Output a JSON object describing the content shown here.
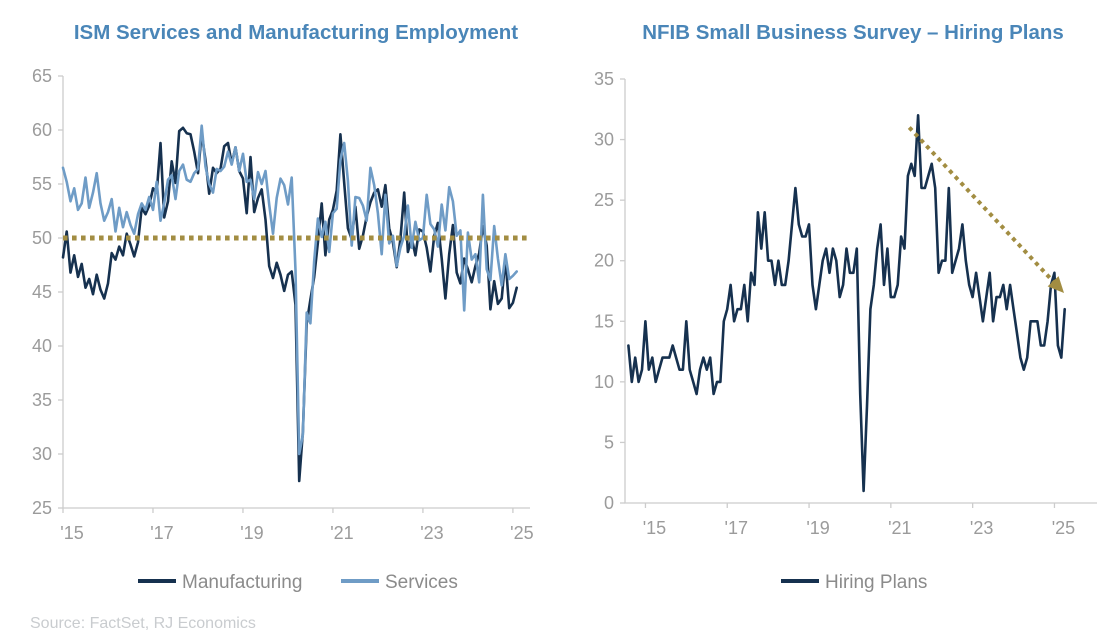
{
  "source": "Source: FactSet, RJ Economics",
  "styles": {
    "title_color": "#4a86b8",
    "tick_text_color": "#9b9b9b",
    "legend_text_color": "#8b8b8b",
    "source_text_color": "#c9cccf",
    "axis_color": "#cccccc",
    "navy": "#16314f",
    "steel_blue": "#6f9cc6",
    "khaki": "#a28d42"
  },
  "chart_data": [
    {
      "type": "line",
      "title": "ISM Services and Manufacturing Employment",
      "xlabel": "",
      "ylabel": "",
      "ylim": [
        25,
        65
      ],
      "xlim": [
        2015.0,
        2025.38
      ],
      "grid": false,
      "legend_position": "bottom",
      "y_ticks": [
        65,
        60,
        55,
        50,
        45,
        40,
        35,
        30,
        25
      ],
      "x_ticks": [
        2015,
        2017,
        2019,
        2021,
        2023,
        2025
      ],
      "x_tick_labels": [
        "'15",
        "'17",
        "'19",
        "'21",
        "'23",
        "'25"
      ],
      "reference_line": {
        "y": 50,
        "style": "dotted",
        "color": "#a28d42"
      },
      "series": [
        {
          "name": "Manufacturing",
          "color": "#16314f",
          "x_start": 2015.0,
          "x_step_years": 0.0833,
          "values": [
            48.2,
            50.6,
            46.8,
            48.4,
            46.4,
            47.6,
            45.4,
            46.2,
            44.8,
            46.6,
            45.2,
            44.4,
            45.8,
            48.6,
            48.0,
            49.2,
            48.4,
            50.4,
            49.4,
            48.3,
            49.6,
            52.8,
            52.2,
            53.0,
            54.6,
            54.2,
            58.8,
            51.9,
            53.4,
            57.1,
            55.1,
            59.9,
            60.2,
            59.7,
            59.6,
            58.0,
            56.0,
            59.7,
            57.2,
            54.1,
            56.5,
            56.0,
            56.4,
            58.5,
            58.8,
            56.9,
            58.4,
            56.2,
            55.5,
            52.3,
            57.5,
            52.4,
            53.7,
            54.5,
            51.7,
            47.4,
            46.3,
            47.7,
            46.6,
            45.1,
            46.6,
            46.9,
            43.8,
            27.5,
            32.1,
            42.1,
            44.3,
            46.4,
            49.6,
            53.2,
            48.4,
            51.7,
            52.6,
            54.4,
            59.6,
            55.1,
            50.9,
            49.9,
            52.9,
            49.0,
            50.2,
            52.0,
            53.3,
            54.2,
            54.5,
            52.9,
            54.9,
            50.9,
            49.6,
            47.3,
            49.9,
            54.2,
            48.7,
            50.0,
            48.4,
            50.8,
            50.6,
            49.1,
            46.9,
            50.2,
            51.4,
            48.1,
            44.4,
            48.5,
            51.2,
            46.8,
            45.8,
            48.1,
            47.1,
            45.9,
            47.4,
            48.6,
            51.1,
            49.3,
            43.4,
            46.0,
            43.9,
            44.4,
            48.1,
            43.5,
            44.0,
            45.4
          ]
        },
        {
          "name": "Services",
          "color": "#6f9cc6",
          "x_start": 2015.0,
          "x_step_years": 0.0833,
          "values": [
            56.5,
            55.2,
            53.4,
            54.6,
            52.6,
            53.2,
            55.6,
            52.8,
            54.2,
            56.0,
            53.2,
            51.6,
            52.4,
            53.6,
            50.6,
            52.8,
            51.0,
            52.4,
            51.2,
            50.4,
            52.2,
            53.2,
            52.6,
            53.8,
            52.6,
            55.2,
            51.6,
            53.2,
            55.4,
            55.8,
            53.6,
            56.2,
            56.8,
            55.4,
            55.2,
            56.0,
            56.4,
            60.4,
            56.6,
            55.0,
            54.2,
            56.4,
            56.2,
            56.6,
            58.0,
            56.8,
            58.4,
            56.2,
            57.8,
            55.2,
            55.4,
            53.6,
            56.1,
            55.0,
            56.2,
            53.1,
            50.4,
            53.7,
            55.5,
            54.9,
            53.1,
            55.6,
            47.0,
            30.0,
            31.8,
            43.1,
            42.1,
            47.9,
            51.8,
            50.1,
            51.5,
            48.7,
            52.3,
            52.7,
            57.2,
            58.8,
            55.3,
            49.3,
            53.8,
            53.7,
            53.0,
            51.6,
            56.5,
            54.9,
            52.3,
            48.5,
            54.0,
            49.5,
            50.2,
            47.4,
            49.1,
            50.2,
            53.0,
            49.1,
            51.5,
            49.8,
            50.0,
            54.0,
            51.3,
            50.8,
            49.2,
            53.1,
            50.7,
            54.7,
            53.4,
            50.2,
            50.7,
            43.3,
            50.5,
            48.0,
            48.5,
            45.9,
            54.0,
            47.1,
            46.1,
            51.1,
            48.1,
            45.6,
            48.5,
            46.2,
            46.5,
            46.9
          ]
        }
      ]
    },
    {
      "type": "line",
      "title": "NFIB Small Business Survey – Hiring Plans",
      "xlabel": "",
      "ylabel": "",
      "ylim": [
        0,
        35
      ],
      "xlim": [
        2014.5,
        2026.04
      ],
      "grid": false,
      "legend_position": "bottom",
      "y_ticks": [
        35,
        30,
        25,
        20,
        15,
        10,
        5,
        0
      ],
      "x_ticks": [
        2015,
        2017,
        2019,
        2021,
        2023,
        2025
      ],
      "x_tick_labels": [
        "'15",
        "'17",
        "'19",
        "'21",
        "'23",
        "'25"
      ],
      "annotation_arrow": {
        "from": [
          2021.45,
          31
        ],
        "to": [
          2025.05,
          18
        ],
        "style": "dotted",
        "color": "#a28d42"
      },
      "series": [
        {
          "name": "Hiring Plans",
          "color": "#16314f",
          "x_start": 2014.583,
          "x_step_years": 0.0833,
          "values": [
            13,
            10,
            12,
            10,
            11,
            15,
            11,
            12,
            10,
            11,
            12,
            12,
            12,
            13,
            12,
            11,
            11,
            15,
            11,
            10,
            9,
            11,
            12,
            11,
            12,
            9,
            10,
            10,
            15,
            16,
            18,
            15,
            16,
            16,
            18,
            15,
            19,
            18,
            24,
            21,
            24,
            20,
            20,
            18,
            20,
            18,
            18,
            20,
            23,
            26,
            23,
            22,
            22,
            23,
            18,
            16,
            18,
            20,
            21,
            19,
            21,
            20,
            17,
            18,
            21,
            19,
            19,
            21,
            9,
            1,
            8,
            16,
            18,
            21,
            23,
            18,
            21,
            17,
            17,
            18,
            22,
            21,
            27,
            28,
            27,
            32,
            26,
            26,
            27,
            28,
            26,
            19,
            20,
            20,
            26,
            19,
            20,
            21,
            23,
            20,
            18,
            17,
            19,
            17,
            15,
            17,
            19,
            15,
            17,
            17,
            18,
            16,
            18,
            16,
            14,
            12,
            11,
            12,
            15,
            15,
            15,
            13,
            13,
            15,
            18,
            19,
            13,
            12,
            16
          ]
        }
      ]
    }
  ]
}
